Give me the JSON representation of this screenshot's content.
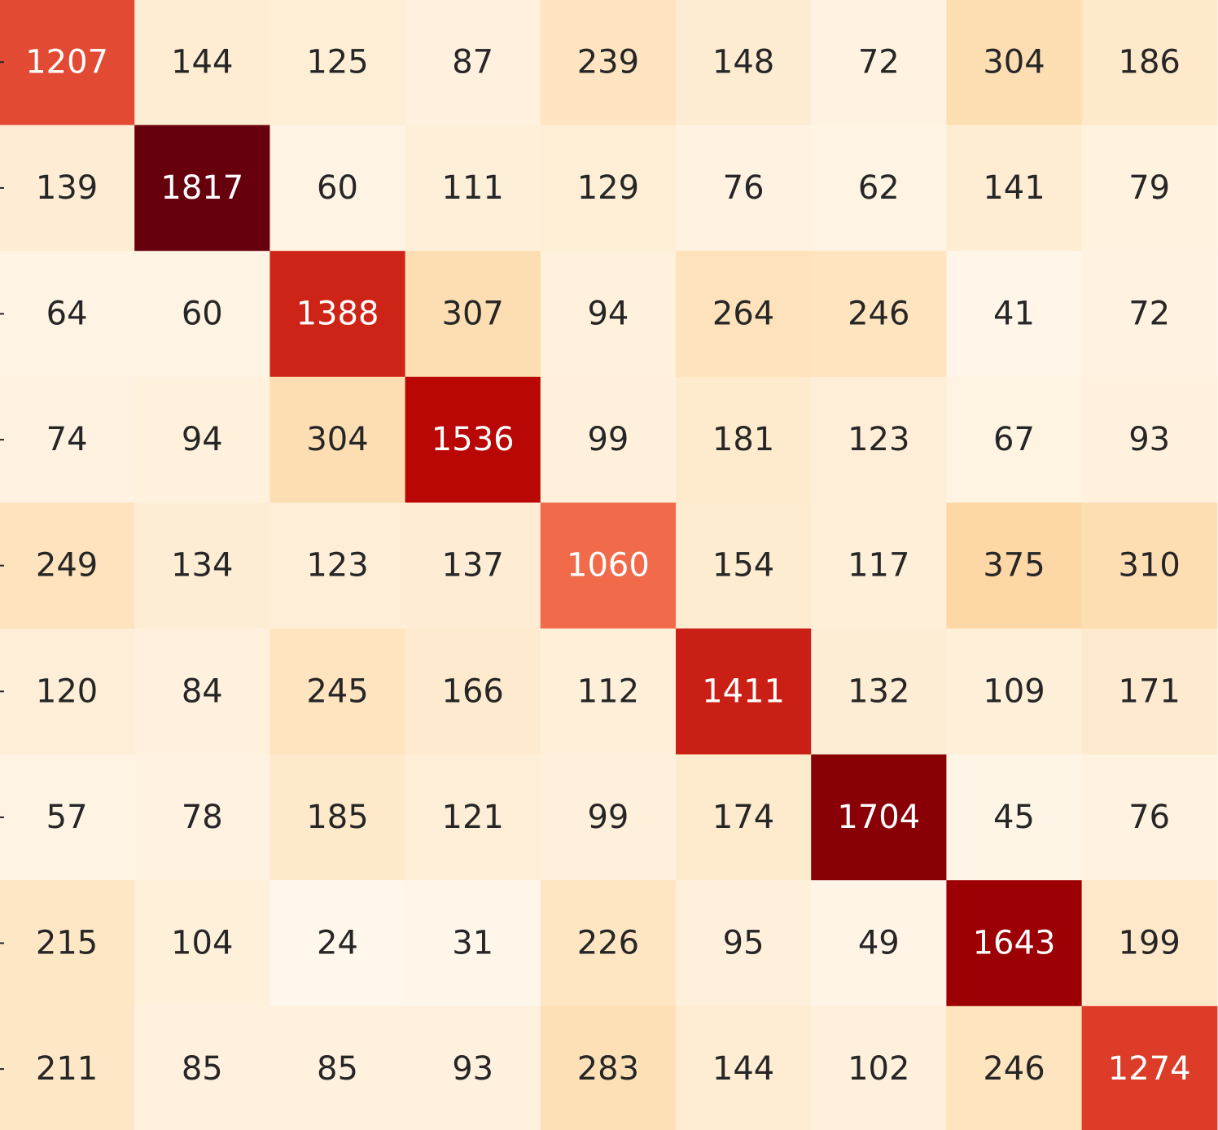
{
  "chart_data": {
    "type": "heatmap",
    "title": "",
    "xlabel": "",
    "ylabel": "",
    "color_scale": {
      "min": 24,
      "max": 1817,
      "low_color": "#fff5eb",
      "high_color": "#67000d",
      "scheme": "sequential orange-red"
    },
    "text_color_light": "#ffffff",
    "text_color_dark": "#262626",
    "matrix": [
      [
        1207,
        144,
        125,
        87,
        239,
        148,
        72,
        304,
        186
      ],
      [
        139,
        1817,
        60,
        111,
        129,
        76,
        62,
        141,
        79
      ],
      [
        64,
        60,
        1388,
        307,
        94,
        264,
        246,
        41,
        72
      ],
      [
        74,
        94,
        304,
        1536,
        99,
        181,
        123,
        67,
        93
      ],
      [
        249,
        134,
        123,
        137,
        1060,
        154,
        117,
        375,
        310
      ],
      [
        120,
        84,
        245,
        166,
        112,
        1411,
        132,
        109,
        171
      ],
      [
        57,
        78,
        185,
        121,
        99,
        174,
        1704,
        45,
        76
      ],
      [
        215,
        104,
        24,
        31,
        226,
        95,
        49,
        1643,
        199
      ],
      [
        211,
        85,
        85,
        93,
        283,
        144,
        102,
        246,
        1274
      ]
    ]
  }
}
